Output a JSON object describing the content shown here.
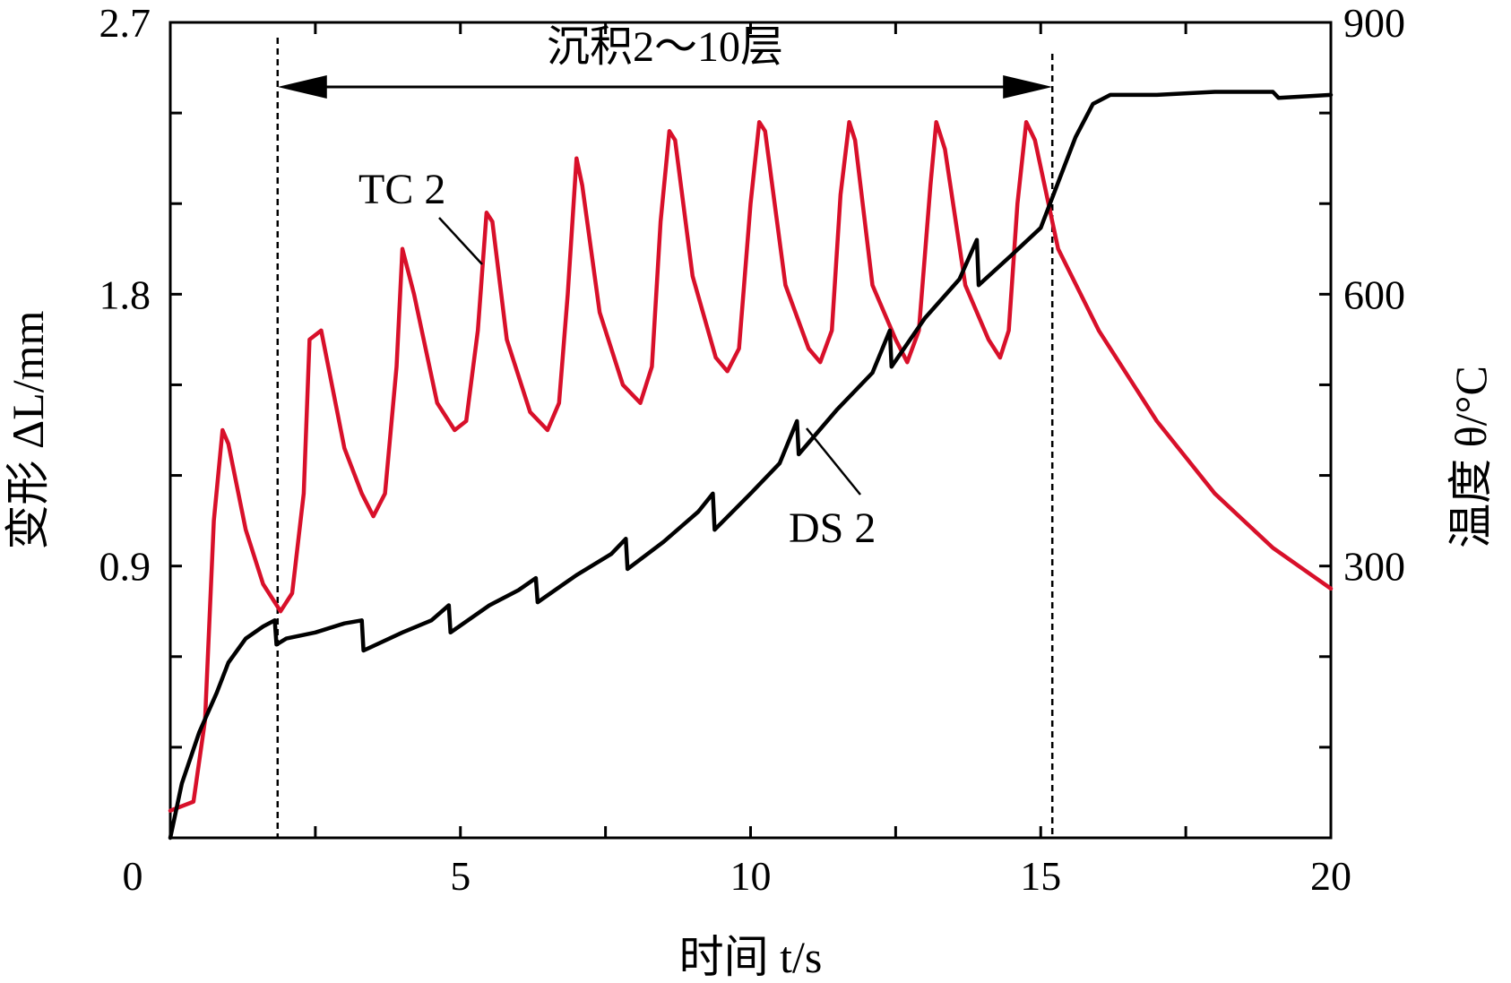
{
  "chart_data": {
    "type": "line",
    "xlabel": "时间 t/s",
    "ylabel_left": "变形 ΔL/mm",
    "ylabel_right": "温度 θ/°C",
    "xlim": [
      0,
      20
    ],
    "ylim_left": [
      0,
      2.7
    ],
    "ylim_right": [
      0,
      900
    ],
    "x_ticks": [
      "0",
      "5",
      "10",
      "15",
      "20"
    ],
    "y_left_ticks": [
      "0.9",
      "1.8",
      "2.7"
    ],
    "y_right_ticks": [
      "300",
      "600",
      "900"
    ],
    "annotation": {
      "text": "沉积2～10层",
      "x_start": 1.85,
      "x_end": 15.2
    },
    "series": [
      {
        "name": "TC 2",
        "axis": "right",
        "color": "#d8102a",
        "x": [
          0.0,
          0.4,
          0.6,
          0.75,
          0.9,
          1.0,
          1.3,
          1.6,
          1.8,
          1.9,
          2.1,
          2.3,
          2.4,
          2.6,
          3.0,
          3.3,
          3.5,
          3.7,
          3.9,
          4.0,
          4.2,
          4.6,
          4.9,
          5.1,
          5.3,
          5.45,
          5.55,
          5.8,
          6.2,
          6.5,
          6.7,
          6.85,
          7.0,
          7.1,
          7.4,
          7.8,
          8.1,
          8.3,
          8.45,
          8.6,
          8.7,
          9.0,
          9.4,
          9.6,
          9.8,
          10.0,
          10.15,
          10.25,
          10.6,
          11.0,
          11.2,
          11.4,
          11.55,
          11.7,
          11.8,
          12.1,
          12.5,
          12.7,
          12.9,
          13.1,
          13.2,
          13.35,
          13.7,
          14.1,
          14.3,
          14.45,
          14.6,
          14.75,
          14.9,
          15.3,
          16,
          17,
          18,
          19,
          20
        ],
        "y": [
          30,
          40,
          130,
          350,
          450,
          435,
          340,
          280,
          260,
          250,
          270,
          380,
          550,
          560,
          430,
          380,
          355,
          380,
          520,
          650,
          600,
          480,
          450,
          460,
          560,
          690,
          680,
          550,
          470,
          450,
          480,
          600,
          750,
          720,
          580,
          500,
          480,
          520,
          680,
          780,
          770,
          620,
          530,
          515,
          540,
          700,
          790,
          780,
          610,
          540,
          525,
          560,
          710,
          790,
          770,
          610,
          550,
          525,
          560,
          720,
          790,
          760,
          610,
          550,
          530,
          560,
          700,
          790,
          770,
          650,
          560,
          460,
          380,
          320,
          275
        ]
      },
      {
        "name": "DS 2",
        "axis": "left",
        "color": "#000000",
        "x": [
          0.0,
          0.2,
          0.5,
          0.8,
          1.0,
          1.3,
          1.6,
          1.8,
          1.83,
          2.0,
          2.5,
          3.0,
          3.3,
          3.33,
          4.0,
          4.5,
          4.8,
          4.83,
          5.5,
          6.0,
          6.3,
          6.33,
          7.0,
          7.6,
          7.85,
          7.88,
          8.5,
          9.1,
          9.35,
          9.38,
          10.0,
          10.5,
          10.8,
          10.83,
          11.5,
          12.1,
          12.4,
          12.43,
          13.0,
          13.6,
          13.9,
          13.93,
          14.5,
          15.0,
          15.3,
          15.6,
          15.9,
          16.2,
          17,
          18,
          19,
          19.1,
          20
        ],
        "y": [
          0.0,
          0.18,
          0.35,
          0.48,
          0.58,
          0.66,
          0.7,
          0.72,
          0.64,
          0.66,
          0.68,
          0.71,
          0.72,
          0.62,
          0.68,
          0.72,
          0.77,
          0.68,
          0.77,
          0.82,
          0.86,
          0.78,
          0.87,
          0.94,
          0.99,
          0.89,
          0.98,
          1.08,
          1.14,
          1.02,
          1.14,
          1.24,
          1.38,
          1.27,
          1.42,
          1.54,
          1.68,
          1.56,
          1.72,
          1.85,
          1.98,
          1.83,
          1.93,
          2.02,
          2.17,
          2.32,
          2.43,
          2.46,
          2.46,
          2.47,
          2.47,
          2.45,
          2.46
        ]
      }
    ],
    "labels": [
      {
        "text": "TC 2",
        "series": "TC 2"
      },
      {
        "text": "DS 2",
        "series": "DS 2"
      }
    ]
  }
}
